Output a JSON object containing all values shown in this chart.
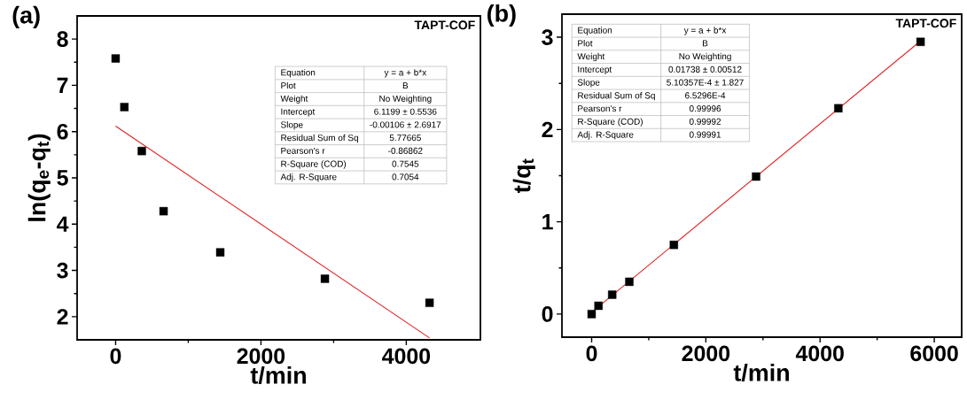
{
  "chart_data": [
    {
      "type": "scatter",
      "title": "(a)",
      "xlabel": "t/min",
      "ylabel": "ln(q$_{e}$-q$_{t}$)",
      "xlim": [
        -530,
        5020
      ],
      "ylim": [
        1.5,
        8.5
      ],
      "xticks": [
        0,
        {
          "value": 1000,
          "label": null
        },
        2000,
        {
          "value": 3000,
          "label": null
        },
        4000
      ],
      "yticks": [
        2,
        {
          "value": 2.5,
          "label": null
        },
        3,
        {
          "value": 3.5,
          "label": null
        },
        4,
        {
          "value": 4.5,
          "label": null
        },
        5,
        {
          "value": 5.5,
          "label": null
        },
        6,
        {
          "value": 6.5,
          "label": null
        },
        7,
        {
          "value": 7.5,
          "label": null
        },
        8
      ],
      "series": [
        {
          "marker": "square",
          "color": "#000000",
          "x": [
            0,
            120,
            360,
            660,
            1440,
            2880,
            4320
          ],
          "values": [
            7.58,
            6.53,
            5.58,
            4.28,
            3.39,
            2.82,
            2.3
          ]
        },
        {
          "type": "line",
          "marker": "none",
          "color": "#e02020",
          "x": [
            0,
            4320
          ],
          "values": [
            6.12,
            1.54
          ]
        }
      ],
      "annotations": [
        "TAPT-COF",
        "Equation",
        "y = a + b*x",
        "Plot",
        "B",
        "Weight",
        "No Weighting",
        "Intercept",
        "6.1199 ± 0.5536",
        "Slope",
        "-0.00106 ± 2.6917",
        "Residual Sum of Sq",
        "5.77665",
        "Pearson's r",
        "-0.86862",
        "R-Square (COD)",
        "0.7545",
        "Adj. R-Square",
        "0.7054"
      ]
    },
    {
      "type": "scatter",
      "title": "(b)",
      "xlabel": "t/min",
      "ylabel": "t/q$_{t}$",
      "xlim": [
        -520,
        6480
      ],
      "ylim": [
        -0.25,
        3.25
      ],
      "xticks": [
        0,
        {
          "value": 1000,
          "label": null
        },
        2000,
        {
          "value": 3000,
          "label": null
        },
        4000,
        {
          "value": 5000,
          "label": null
        },
        6000
      ],
      "yticks": [
        0,
        {
          "value": 0.5,
          "label": null
        },
        1,
        {
          "value": 1.5,
          "label": null
        },
        2,
        {
          "value": 2.5,
          "label": null
        },
        3
      ],
      "series": [
        {
          "marker": "square",
          "color": "#000000",
          "x": [
            0,
            120,
            360,
            660,
            1440,
            2880,
            4320,
            5760
          ],
          "values": [
            0.0,
            0.09,
            0.21,
            0.35,
            0.75,
            1.49,
            2.23,
            2.95
          ]
        },
        {
          "type": "line",
          "marker": "none",
          "color": "#e02020",
          "x": [
            0,
            5760
          ],
          "values": [
            0.02,
            2.96
          ]
        }
      ],
      "annotations": [
        "TAPT-COF",
        "Equation",
        "y = a + b*x",
        "Plot",
        "B",
        "Weight",
        "No Weighting",
        "Intercept",
        "0.01738 ± 0.00512",
        "Slope",
        "5.10357E-4 ± 1.827",
        "Residual Sum of Sq",
        "6.5296E-4",
        "Pearson's r",
        "0.99996",
        "R-Square (COD)",
        "0.99992",
        "Adj. R-Square",
        "0.99991"
      ]
    }
  ]
}
